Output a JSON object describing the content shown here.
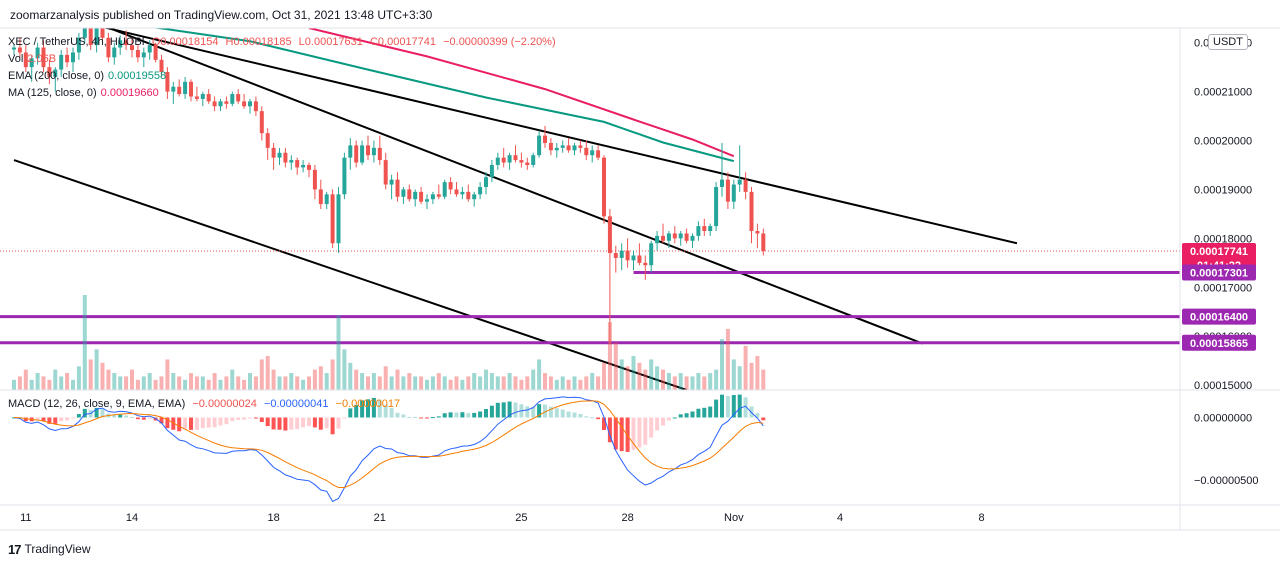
{
  "header": {
    "publisher_line": "zoomarzanalysis published on TradingView.com, Oct 31, 2021 13:48 UTC+3:30"
  },
  "legend": {
    "symbol": "XEC / TetherUS, 4h, HUOBI",
    "open": "O0.00018154",
    "high": "H0.00018185",
    "low": "L0.00017631",
    "close": "C0.00017741",
    "change": "−0.00000399 (−2.20%)",
    "vol_label": "Vol",
    "vol_value": "2.06B",
    "ema_label": "EMA (200, close, 0)",
    "ema_value": "0.00019558",
    "ma_label": "MA (125, close, 0)",
    "ma_value": "0.00019660"
  },
  "macd_legend": {
    "label": "MACD (12, 26, close, 9, EMA, EMA)",
    "hist": "−0.00000024",
    "macd": "−0.00000041",
    "signal": "−0.00000017"
  },
  "currency": "USDT",
  "footer": {
    "brand": "TradingView",
    "logo_text": "17"
  },
  "colors": {
    "up": "#26a69a",
    "down": "#ef5350",
    "ema": "#089981",
    "ma": "#e91e63",
    "level": "#9c27b0",
    "price_tag": "#e91e63",
    "macd": "#2962ff",
    "signal": "#f57c00",
    "trend": "#000000"
  },
  "chart_data": {
    "type": "candlestick",
    "title": "XEC / TetherUS, 4h, HUOBI",
    "price_axis": {
      "ticks": [
        "0.00022000",
        "0.00021000",
        "0.00020000",
        "0.00019000",
        "0.00018000",
        "0.00017000",
        "0.00016000",
        "0.00015000"
      ],
      "ylim": [
        0.000149,
        0.000223
      ]
    },
    "x_axis": {
      "ticks": [
        {
          "label": "11",
          "index": 2
        },
        {
          "label": "14",
          "index": 20
        },
        {
          "label": "18",
          "index": 44
        },
        {
          "label": "21",
          "index": 62
        },
        {
          "label": "25",
          "index": 86
        },
        {
          "label": "28",
          "index": 104
        },
        {
          "label": "Nov",
          "index": 122
        },
        {
          "label": "4",
          "index": 140
        },
        {
          "label": "8",
          "index": 164
        }
      ]
    },
    "price_levels": [
      {
        "value": 0.00017301,
        "label": "0.00017301",
        "from_index": 105
      },
      {
        "value": 0.000164,
        "label": "0.00016400",
        "from_index": 0
      },
      {
        "value": 0.00015865,
        "label": "0.00015865",
        "from_index": 0
      }
    ],
    "current_price": {
      "value": 0.00017741,
      "label": "0.00017741",
      "countdown": "01:41:22"
    },
    "trendlines": [
      {
        "x1": 14,
        "y1": 0.0002235,
        "x2": 170,
        "y2": 0.000179
      },
      {
        "x1": 0,
        "y1": 0.000196,
        "x2": 114,
        "y2": 0.000149
      },
      {
        "x1": 14,
        "y1": 0.000224,
        "x2": 154,
        "y2": 0.0001585
      }
    ],
    "ema200": [
      [
        0,
        0.000225
      ],
      [
        20,
        0.0002238
      ],
      [
        40,
        0.0002203
      ],
      [
        60,
        0.0002145
      ],
      [
        80,
        0.0002088
      ],
      [
        100,
        0.0002038
      ],
      [
        110,
        0.0001996
      ],
      [
        122,
        0.0001958
      ]
    ],
    "ma125": [
      [
        50,
        0.000223
      ],
      [
        70,
        0.0002172
      ],
      [
        90,
        0.0002105
      ],
      [
        105,
        0.0002043
      ],
      [
        115,
        0.0002002
      ],
      [
        122,
        0.0001968
      ]
    ],
    "candles": [
      [
        0.0002186,
        0.0002198,
        0.0002175,
        0.000219
      ],
      [
        0.000219,
        0.000221,
        0.000217,
        0.000218
      ],
      [
        0.000218,
        0.0002195,
        0.000214,
        0.000215
      ],
      [
        0.000215,
        0.0002175,
        0.000212,
        0.0002168
      ],
      [
        0.0002168,
        0.00022,
        0.0002155,
        0.000219
      ],
      [
        0.000219,
        0.0002205,
        0.000214,
        0.000215
      ],
      [
        0.000215,
        0.0002165,
        0.0002115,
        0.000213
      ],
      [
        0.000213,
        0.000215,
        0.00021,
        0.0002145
      ],
      [
        0.0002145,
        0.0002185,
        0.000213,
        0.0002175
      ],
      [
        0.0002175,
        0.000219,
        0.000215,
        0.000216
      ],
      [
        0.000216,
        0.000219,
        0.000214,
        0.000218
      ],
      [
        0.000218,
        0.000222,
        0.0002165,
        0.000221
      ],
      [
        0.000221,
        0.000226,
        0.00022,
        0.0002245
      ],
      [
        0.0002245,
        0.0002255,
        0.0002185,
        0.0002195
      ],
      [
        0.0002195,
        0.0002245,
        0.000218,
        0.0002235
      ],
      [
        0.0002235,
        0.0002255,
        0.00022,
        0.000221
      ],
      [
        0.000221,
        0.000222,
        0.000216,
        0.000217
      ],
      [
        0.000217,
        0.00022,
        0.0002155,
        0.000219
      ],
      [
        0.000219,
        0.0002215,
        0.0002175,
        0.0002205
      ],
      [
        0.0002205,
        0.0002225,
        0.0002185,
        0.0002195
      ],
      [
        0.0002195,
        0.000221,
        0.000217,
        0.0002185
      ],
      [
        0.0002185,
        0.0002195,
        0.000216,
        0.000217
      ],
      [
        0.000217,
        0.000219,
        0.000215,
        0.000218
      ],
      [
        0.000218,
        0.0002205,
        0.0002165,
        0.0002195
      ],
      [
        0.0002195,
        0.00022,
        0.000216,
        0.0002165
      ],
      [
        0.0002165,
        0.0002175,
        0.000213,
        0.000214
      ],
      [
        0.000214,
        0.000215,
        0.0002085,
        0.00021
      ],
      [
        0.00021,
        0.000212,
        0.0002075,
        0.000211
      ],
      [
        0.000211,
        0.0002125,
        0.000209,
        0.0002095
      ],
      [
        0.0002095,
        0.000213,
        0.0002085,
        0.000212
      ],
      [
        0.000212,
        0.0002125,
        0.000208,
        0.000209
      ],
      [
        0.000209,
        0.000211,
        0.000208,
        0.0002085
      ],
      [
        0.0002085,
        0.00021,
        0.000207,
        0.0002095
      ],
      [
        0.0002095,
        0.0002105,
        0.0002075,
        0.000208
      ],
      [
        0.000208,
        0.000209,
        0.000206,
        0.000207
      ],
      [
        0.000207,
        0.0002085,
        0.000206,
        0.000208
      ],
      [
        0.000208,
        0.000209,
        0.0002065,
        0.0002075
      ],
      [
        0.0002075,
        0.00021,
        0.000207,
        0.0002095
      ],
      [
        0.0002095,
        0.0002105,
        0.0002075,
        0.000208
      ],
      [
        0.000208,
        0.0002095,
        0.0002065,
        0.000207
      ],
      [
        0.000207,
        0.0002085,
        0.0002055,
        0.000208
      ],
      [
        0.000208,
        0.000209,
        0.000205,
        0.000206
      ],
      [
        0.000206,
        0.000207,
        0.0002,
        0.0002015
      ],
      [
        0.0002015,
        0.0002025,
        0.000196,
        0.0001985
      ],
      [
        0.0001985,
        0.0001995,
        0.000194,
        0.0001965
      ],
      [
        0.0001965,
        0.0001985,
        0.000195,
        0.0001975
      ],
      [
        0.0001975,
        0.0001985,
        0.0001945,
        0.0001955
      ],
      [
        0.0001955,
        0.000197,
        0.000194,
        0.000196
      ],
      [
        0.000196,
        0.0001965,
        0.000193,
        0.0001945
      ],
      [
        0.0001945,
        0.000196,
        0.0001935,
        0.000195
      ],
      [
        0.000195,
        0.0001955,
        0.0001925,
        0.000194
      ],
      [
        0.000194,
        0.000195,
        0.000188,
        0.00019
      ],
      [
        0.00019,
        0.000192,
        0.000186,
        0.000187
      ],
      [
        0.000187,
        0.0001895,
        0.000186,
        0.000189
      ],
      [
        0.000189,
        0.00019,
        0.000178,
        0.000179
      ],
      [
        0.000179,
        0.0001905,
        0.000177,
        0.000189
      ],
      [
        0.000189,
        0.0001975,
        0.000188,
        0.0001965
      ],
      [
        0.0001965,
        0.0002005,
        0.000194,
        0.000199
      ],
      [
        0.000199,
        0.0002,
        0.0001945,
        0.0001955
      ],
      [
        0.0001955,
        0.0002,
        0.000195,
        0.000199
      ],
      [
        0.000199,
        0.000201,
        0.000196,
        0.000197
      ],
      [
        0.000197,
        0.0002,
        0.0001955,
        0.0001985
      ],
      [
        0.0001985,
        0.000201,
        0.000195,
        0.000196
      ],
      [
        0.000196,
        0.0001975,
        0.00019,
        0.000191
      ],
      [
        0.000191,
        0.000193,
        0.000188,
        0.000192
      ],
      [
        0.000192,
        0.0001935,
        0.0001875,
        0.0001885
      ],
      [
        0.0001885,
        0.0001905,
        0.000187,
        0.00019
      ],
      [
        0.00019,
        0.000191,
        0.0001875,
        0.000188
      ],
      [
        0.000188,
        0.00019,
        0.0001865,
        0.0001895
      ],
      [
        0.0001895,
        0.0001905,
        0.000187,
        0.0001875
      ],
      [
        0.0001875,
        0.000189,
        0.000186,
        0.000188
      ],
      [
        0.000188,
        0.0001895,
        0.000187,
        0.000189
      ],
      [
        0.000189,
        0.000191,
        0.000188,
        0.0001885
      ],
      [
        0.0001885,
        0.000192,
        0.000188,
        0.0001915
      ],
      [
        0.0001915,
        0.0001925,
        0.000189,
        0.00019
      ],
      [
        0.00019,
        0.0001915,
        0.0001885,
        0.000189
      ],
      [
        0.000189,
        0.0001905,
        0.000188,
        0.0001895
      ],
      [
        0.0001895,
        0.000191,
        0.0001875,
        0.000188
      ],
      [
        0.000188,
        0.0001895,
        0.0001865,
        0.000189
      ],
      [
        0.000189,
        0.0001915,
        0.000188,
        0.0001905
      ],
      [
        0.0001905,
        0.0001935,
        0.000189,
        0.0001925
      ],
      [
        0.0001925,
        0.000196,
        0.0001915,
        0.000195
      ],
      [
        0.000195,
        0.0001975,
        0.000194,
        0.0001965
      ],
      [
        0.0001965,
        0.0001985,
        0.0001945,
        0.0001955
      ],
      [
        0.0001955,
        0.0001975,
        0.000194,
        0.000197
      ],
      [
        0.000197,
        0.000199,
        0.0001955,
        0.000196
      ],
      [
        0.000196,
        0.0001975,
        0.0001945,
        0.0001955
      ],
      [
        0.0001955,
        0.0001965,
        0.000194,
        0.000195
      ],
      [
        0.000195,
        0.0001975,
        0.0001945,
        0.000197
      ],
      [
        0.000197,
        0.000202,
        0.0001965,
        0.000201
      ],
      [
        0.000201,
        0.000203,
        0.0001985,
        0.0001995
      ],
      [
        0.0001995,
        0.0002005,
        0.000197,
        0.000198
      ],
      [
        0.000198,
        0.0001995,
        0.0001965,
        0.0001985
      ],
      [
        0.0001985,
        0.0002,
        0.0001975,
        0.000199
      ],
      [
        0.000199,
        0.0002005,
        0.0001975,
        0.000198
      ],
      [
        0.000198,
        0.0001995,
        0.000197,
        0.000199
      ],
      [
        0.000199,
        0.0002,
        0.0001975,
        0.0001985
      ],
      [
        0.0001985,
        0.0002,
        0.000196,
        0.000197
      ],
      [
        0.000197,
        0.000199,
        0.0001955,
        0.000198
      ],
      [
        0.000198,
        0.000199,
        0.000196,
        0.0001965
      ],
      [
        0.0001965,
        0.000197,
        0.000183,
        0.0001845
      ],
      [
        0.0001845,
        0.000186,
        0.0001585,
        0.000177
      ],
      [
        0.000177,
        0.0001785,
        0.000173,
        0.000176
      ],
      [
        0.000176,
        0.000179,
        0.0001735,
        0.0001775
      ],
      [
        0.0001775,
        0.00018,
        0.000174,
        0.0001755
      ],
      [
        0.0001755,
        0.0001775,
        0.0001735,
        0.0001765
      ],
      [
        0.0001765,
        0.000179,
        0.0001745,
        0.000175
      ],
      [
        0.000175,
        0.0001765,
        0.0001715,
        0.0001745
      ],
      [
        0.0001745,
        0.0001795,
        0.000173,
        0.000179
      ],
      [
        0.000179,
        0.0001815,
        0.0001775,
        0.0001805
      ],
      [
        0.0001805,
        0.000183,
        0.000179,
        0.0001795
      ],
      [
        0.0001795,
        0.0001815,
        0.000178,
        0.000181
      ],
      [
        0.000181,
        0.0001825,
        0.000179,
        0.00018
      ],
      [
        0.00018,
        0.0001815,
        0.0001785,
        0.000181
      ],
      [
        0.000181,
        0.000182,
        0.000179,
        0.0001795
      ],
      [
        0.0001795,
        0.000181,
        0.000178,
        0.0001805
      ],
      [
        0.0001805,
        0.0001835,
        0.0001795,
        0.0001825
      ],
      [
        0.0001825,
        0.000184,
        0.0001805,
        0.0001815
      ],
      [
        0.0001815,
        0.000183,
        0.0001805,
        0.0001825
      ],
      [
        0.0001825,
        0.0001915,
        0.0001815,
        0.0001905
      ],
      [
        0.0001905,
        0.0001995,
        0.0001885,
        0.000192
      ],
      [
        0.000192,
        0.0001935,
        0.000186,
        0.0001875
      ],
      [
        0.0001875,
        0.000192,
        0.000186,
        0.000191
      ],
      [
        0.000191,
        0.000199,
        0.0001895,
        0.000192
      ],
      [
        0.000192,
        0.0001935,
        0.000188,
        0.0001895
      ],
      [
        0.0001895,
        0.0001905,
        0.000179,
        0.0001815
      ],
      [
        0.0001815,
        0.000183,
        0.000178,
        0.000181
      ],
      [
        0.000181,
        0.000182,
        0.0001765,
        0.0001774
      ]
    ],
    "volume": [
      0.3,
      0.4,
      0.6,
      0.3,
      0.5,
      0.4,
      0.3,
      0.6,
      0.4,
      0.5,
      0.3,
      0.7,
      2.8,
      0.9,
      1.2,
      0.8,
      0.6,
      0.5,
      0.4,
      0.4,
      0.6,
      0.3,
      0.4,
      0.5,
      0.3,
      0.4,
      0.9,
      0.5,
      0.4,
      0.3,
      0.5,
      0.4,
      0.4,
      0.3,
      0.5,
      0.3,
      0.4,
      0.6,
      0.4,
      0.3,
      0.5,
      0.4,
      0.9,
      1.0,
      0.6,
      0.4,
      0.4,
      0.5,
      0.4,
      0.3,
      0.4,
      0.6,
      0.7,
      0.5,
      0.9,
      2.2,
      1.2,
      0.8,
      0.6,
      0.5,
      0.4,
      0.5,
      0.4,
      0.7,
      0.4,
      0.6,
      0.4,
      0.5,
      0.4,
      0.4,
      0.3,
      0.4,
      0.5,
      0.4,
      0.3,
      0.4,
      0.3,
      0.4,
      0.5,
      0.4,
      0.6,
      0.5,
      0.4,
      0.4,
      0.5,
      0.4,
      0.3,
      0.4,
      0.6,
      0.9,
      0.5,
      0.4,
      0.3,
      0.4,
      0.3,
      0.4,
      0.3,
      0.4,
      0.5,
      0.4,
      0.8,
      2.0,
      1.4,
      0.9,
      0.7,
      1.0,
      0.8,
      0.6,
      0.9,
      0.7,
      0.6,
      0.5,
      0.4,
      0.5,
      0.4,
      0.4,
      0.5,
      0.4,
      0.5,
      0.6,
      1.5,
      1.8,
      0.9,
      0.7,
      1.3,
      0.8,
      1.0,
      0.6,
      0.5
    ],
    "macd_axis": {
      "ticks": [
        "0.00000000",
        "−0.00000500"
      ],
      "ylim": [
        -7e-06,
        2.2e-06
      ]
    }
  }
}
